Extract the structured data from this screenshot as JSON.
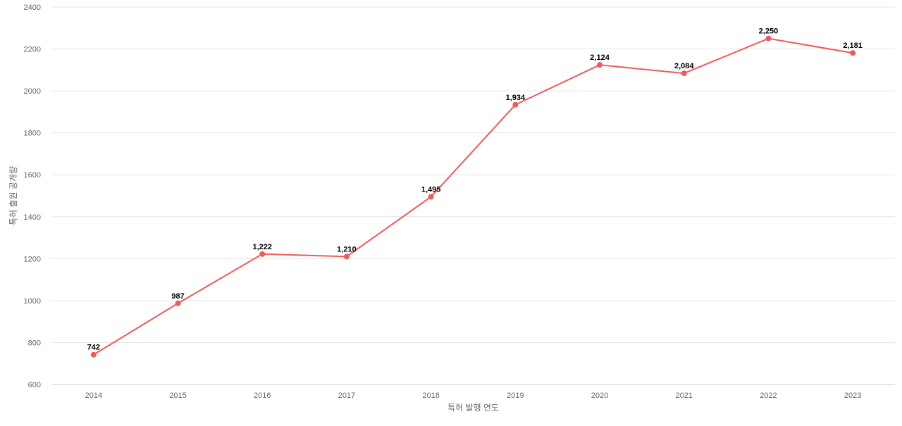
{
  "chart_data": {
    "type": "line",
    "title": "",
    "xlabel": "특허 발행 연도",
    "ylabel": "특허 출원 공개량",
    "categories": [
      "2014",
      "2015",
      "2016",
      "2017",
      "2018",
      "2019",
      "2020",
      "2021",
      "2022",
      "2023"
    ],
    "series": [
      {
        "values": [
          742,
          987,
          1222,
          1210,
          1495,
          1934,
          2124,
          2084,
          2250,
          2181
        ],
        "data_labels": [
          "742",
          "987",
          "1,222",
          "1,210",
          "1,495",
          "1,934",
          "2,124",
          "2,084",
          "2,250",
          "2,181"
        ],
        "color": "#ef5a5a"
      }
    ],
    "ylim": [
      600,
      2400
    ],
    "yticks": [
      "600",
      "800",
      "1000",
      "1200",
      "1400",
      "1600",
      "1800",
      "2000",
      "2200",
      "2400"
    ],
    "grid": true,
    "legend": "none"
  }
}
